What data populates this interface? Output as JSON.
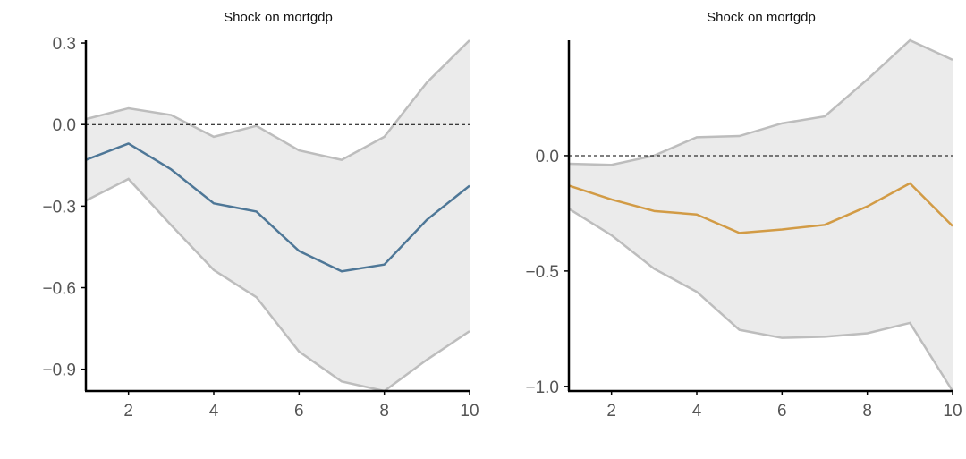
{
  "chart_data": [
    {
      "type": "line",
      "title": "Shock on mortgdp",
      "xlabel": "",
      "ylabel": "",
      "x": [
        1,
        2,
        3,
        4,
        5,
        6,
        7,
        8,
        9,
        10
      ],
      "xlim": [
        1,
        10
      ],
      "ylim": [
        -0.98,
        0.31
      ],
      "xticks": [
        2,
        4,
        6,
        8,
        10
      ],
      "yticks": [
        0.3,
        0.0,
        -0.3,
        -0.6,
        -0.9
      ],
      "ytick_labels": [
        "0.3",
        "0.0",
        "−0.3",
        "−0.6",
        "−0.9"
      ],
      "xtick_labels": [
        "2",
        "4",
        "6",
        "8",
        "10"
      ],
      "zero_line": true,
      "grid": false,
      "series": [
        {
          "role": "estimate",
          "color": "#4e7797",
          "values": [
            -0.13,
            -0.07,
            -0.165,
            -0.29,
            -0.32,
            -0.465,
            -0.54,
            -0.515,
            -0.35,
            -0.225
          ]
        },
        {
          "role": "upper-band",
          "color": "#bdbdbd",
          "values": [
            0.02,
            0.06,
            0.035,
            -0.045,
            -0.005,
            -0.095,
            -0.13,
            -0.045,
            0.155,
            0.31
          ]
        },
        {
          "role": "lower-band",
          "color": "#bdbdbd",
          "values": [
            -0.28,
            -0.2,
            -0.37,
            -0.535,
            -0.635,
            -0.835,
            -0.945,
            -0.98,
            -0.865,
            -0.76
          ]
        }
      ],
      "band_fill": "#ebebeb"
    },
    {
      "type": "line",
      "title": "Shock on mortgdp",
      "xlabel": "",
      "ylabel": "",
      "x": [
        1,
        2,
        3,
        4,
        5,
        6,
        7,
        8,
        9,
        10
      ],
      "xlim": [
        1,
        10
      ],
      "ylim": [
        -1.02,
        0.5
      ],
      "xticks": [
        2,
        4,
        6,
        8,
        10
      ],
      "yticks": [
        0.0,
        -0.5,
        -1.0
      ],
      "ytick_labels": [
        "0.0",
        "−0.5",
        "−1.0"
      ],
      "xtick_labels": [
        "2",
        "4",
        "6",
        "8",
        "10"
      ],
      "zero_line": true,
      "grid": false,
      "series": [
        {
          "role": "estimate",
          "color": "#d29b45",
          "values": [
            -0.13,
            -0.19,
            -0.24,
            -0.255,
            -0.335,
            -0.32,
            -0.3,
            -0.22,
            -0.12,
            -0.305
          ]
        },
        {
          "role": "upper-band",
          "color": "#bdbdbd",
          "values": [
            -0.035,
            -0.04,
            0.0,
            0.08,
            0.085,
            0.14,
            0.17,
            0.33,
            0.5,
            0.415
          ]
        },
        {
          "role": "lower-band",
          "color": "#bdbdbd",
          "values": [
            -0.23,
            -0.345,
            -0.49,
            -0.59,
            -0.755,
            -0.79,
            -0.785,
            -0.77,
            -0.725,
            -1.02
          ]
        }
      ],
      "band_fill": "#ebebeb"
    }
  ]
}
